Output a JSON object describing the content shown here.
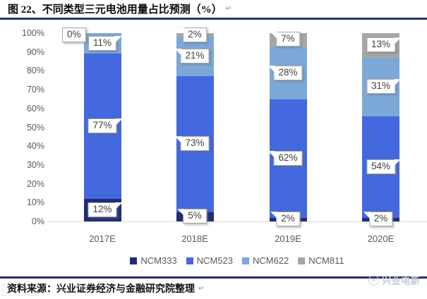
{
  "header": {
    "title": "图 22、不同类型三元电池用量占比预测（%）",
    "paragraph_mark": "↵"
  },
  "footer": {
    "source_label": "资料来源：兴业证券经济与金融研究院整理",
    "paragraph_mark": "↵",
    "watermark": "兴业电新"
  },
  "colors": {
    "rule_navy": "#2a3168",
    "axis_text": "#595959",
    "baseline": "#d9d9d9",
    "callout_border": "#a6a6a6",
    "watermark_gray": "#c7ccd8"
  },
  "chart_data": {
    "type": "bar",
    "stacked": true,
    "percent_stacked": true,
    "title": "不同类型三元电池用量占比预测（%）",
    "categories": [
      "2017E",
      "2018E",
      "2019E",
      "2020E"
    ],
    "series": [
      {
        "name": "NCM333",
        "color": "#1f2c7a",
        "values": [
          12,
          5,
          2,
          2
        ]
      },
      {
        "name": "NCM523",
        "color": "#4468dd",
        "values": [
          77,
          73,
          62,
          54
        ]
      },
      {
        "name": "NCM622",
        "color": "#7ca8d8",
        "values": [
          11,
          21,
          28,
          31
        ]
      },
      {
        "name": "NCM811",
        "color": "#a7a7a7",
        "values": [
          0,
          2,
          7,
          13
        ]
      }
    ],
    "y_ticks": [
      "0%",
      "10%",
      "20%",
      "30%",
      "40%",
      "50%",
      "60%",
      "70%",
      "80%",
      "90%",
      "100%"
    ],
    "ylim": [
      0,
      100
    ],
    "grid": false,
    "legend_position": "bottom",
    "data_labels": "callout",
    "label_pointer_sides": [
      [
        "right",
        "right",
        "right",
        "none"
      ],
      [
        "left",
        "left",
        "left",
        "left"
      ],
      [
        "left",
        "left",
        "left",
        "left"
      ],
      [
        "left",
        "right",
        "right",
        "right"
      ]
    ]
  }
}
